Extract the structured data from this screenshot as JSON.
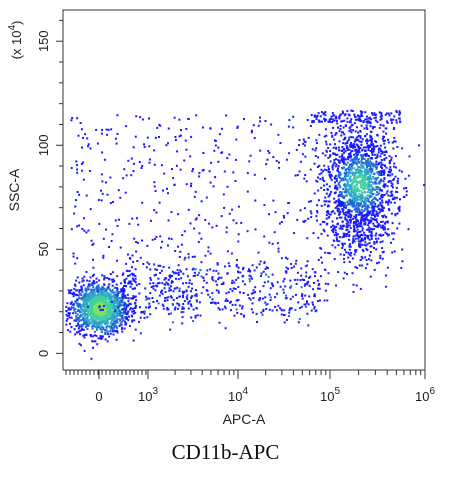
{
  "chart_data": {
    "type": "scatter",
    "style": "flow cytometry density dot plot",
    "xlabel": "APC-A",
    "ylabel": "SSC-A",
    "y_multiplier_label": "(x 10",
    "y_multiplier_exponent": "4",
    "y_multiplier_close": ")",
    "x_scale": "biexponential",
    "x_ticks": [
      {
        "value": 0,
        "base": "0",
        "exp": ""
      },
      {
        "value": 1000,
        "base": "10",
        "exp": "3"
      },
      {
        "value": 10000,
        "base": "10",
        "exp": "4"
      },
      {
        "value": 100000,
        "base": "10",
        "exp": "5"
      },
      {
        "value": 1000000,
        "base": "10",
        "exp": "6"
      }
    ],
    "y_ticks": [
      "0",
      "50",
      "100",
      "150"
    ],
    "y_tick_values": [
      0,
      50,
      100,
      150
    ],
    "ylim": [
      -8,
      165
    ],
    "grid": false,
    "legend": "none",
    "populations": [
      {
        "name_shown": "",
        "x_center": "~0",
        "y_center": 22,
        "description": "dense negative population near origin"
      },
      {
        "name_shown": "",
        "x_center": 200000,
        "y_center": 80,
        "description": "APC-positive population, SSC 40-115"
      }
    ],
    "density_colors": [
      "#1a1aff",
      "#1f6bd6",
      "#2fa8c8",
      "#40d0a0",
      "#80e060"
    ],
    "caption": "CD11b-APC"
  }
}
